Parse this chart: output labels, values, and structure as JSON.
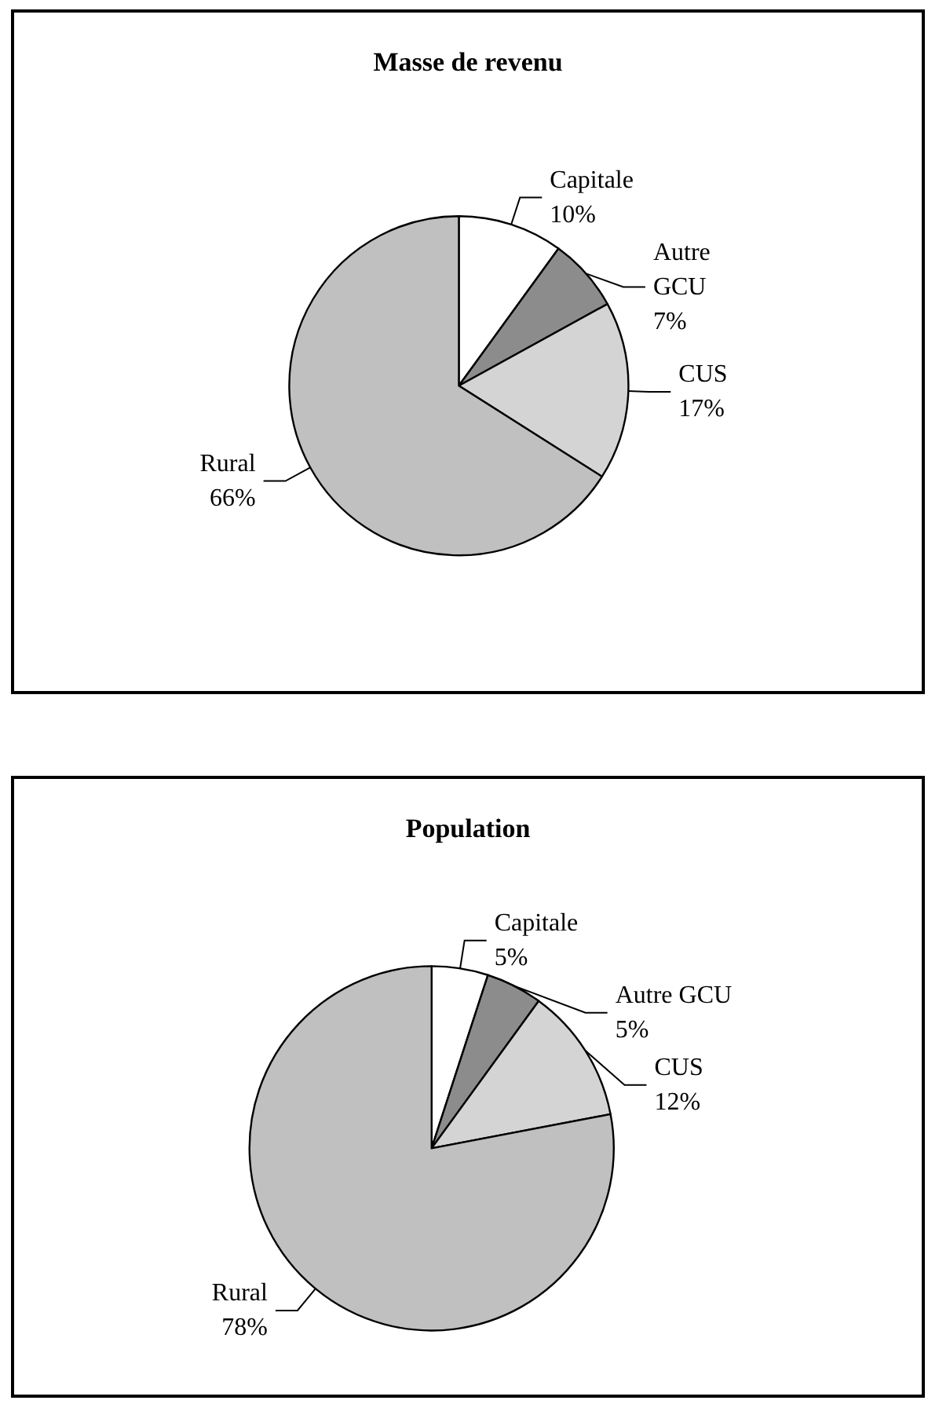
{
  "chart_data": [
    {
      "type": "pie",
      "title": "Masse de revenu",
      "categories": [
        "Capitale",
        "Autre GCU",
        "CUS",
        "Rural"
      ],
      "values": [
        10,
        7,
        17,
        66
      ],
      "colors": [
        "#ffffff",
        "#8c8c8c",
        "#d4d4d4",
        "#c0c0c0"
      ],
      "value_labels": [
        "10%",
        "7%",
        "17%",
        "66%"
      ]
    },
    {
      "type": "pie",
      "title": "Population",
      "categories": [
        "Capitale",
        "Autre GCU",
        "CUS",
        "Rural"
      ],
      "values": [
        5,
        5,
        12,
        78
      ],
      "colors": [
        "#ffffff",
        "#8c8c8c",
        "#d4d4d4",
        "#c0c0c0"
      ],
      "value_labels": [
        "5%",
        "5%",
        "12%",
        "78%"
      ]
    }
  ]
}
